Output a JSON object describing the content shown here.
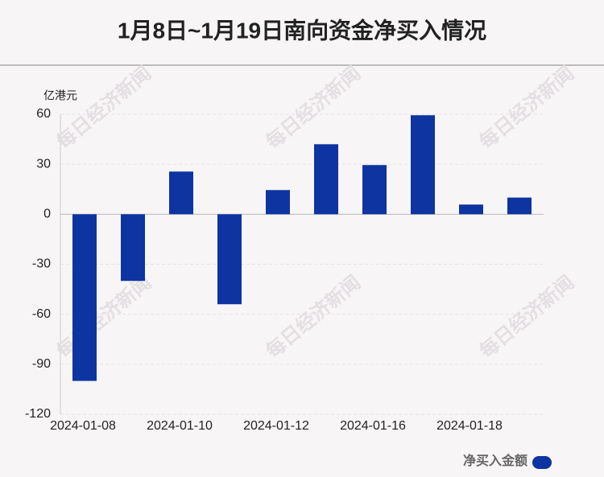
{
  "chart_data": {
    "type": "bar",
    "title": "1月8日~1月19日南向资金净买入情况",
    "y_axis_label": "亿港元",
    "watermark": "每日经济新闻",
    "categories": [
      "2024-01-08",
      null,
      "2024-01-10",
      null,
      "2024-01-12",
      null,
      "2024-01-16",
      null,
      "2024-01-18",
      null
    ],
    "series": [
      {
        "name": "净买入金额",
        "color": "#0d34a0",
        "values": [
          -100,
          -40,
          25.6,
          -54,
          14.5,
          42,
          29.5,
          59.4,
          5.8,
          10
        ]
      }
    ],
    "ylim": [
      -120,
      60
    ],
    "yticks": [
      -120,
      -90,
      -60,
      -30,
      0,
      30,
      60
    ],
    "grid": true
  }
}
